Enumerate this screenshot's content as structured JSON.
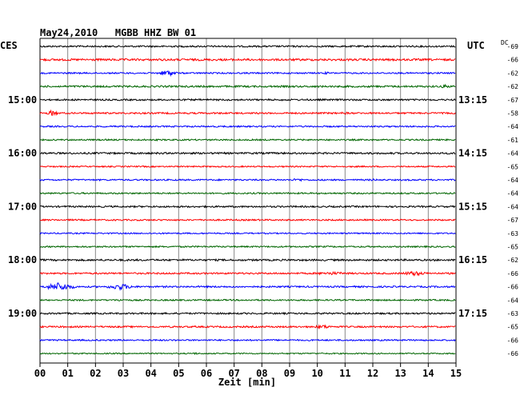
{
  "header": {
    "title": "May24,2010   MGBB HHZ BW 01",
    "left_zone": "CES",
    "right_zone": "UTC",
    "dc_label": "DC"
  },
  "colors": {
    "traces": [
      "#000000",
      "#ff0000",
      "#0000ff",
      "#006600"
    ],
    "grid": "#888888",
    "axis": "#000000"
  },
  "chart_data": {
    "type": "line",
    "title": "May24,2010   MGBB HHZ BW 01",
    "xlabel": "Zeit [min]",
    "ylabel": "",
    "xlim": [
      0,
      15
    ],
    "x_ticks": [
      "00",
      "01",
      "02",
      "03",
      "04",
      "05",
      "06",
      "07",
      "08",
      "09",
      "10",
      "11",
      "12",
      "13",
      "14",
      "15"
    ],
    "grid": true,
    "row_count": 24,
    "rows_per_hour": 4,
    "left_time_labels": [
      {
        "row": 4,
        "label": "15:00"
      },
      {
        "row": 8,
        "label": "16:00"
      },
      {
        "row": 12,
        "label": "17:00"
      },
      {
        "row": 16,
        "label": "18:00"
      },
      {
        "row": 20,
        "label": "19:00"
      }
    ],
    "right_time_labels": [
      {
        "row": 4,
        "label": "13:15"
      },
      {
        "row": 8,
        "label": "14:15"
      },
      {
        "row": 12,
        "label": "15:15"
      },
      {
        "row": 16,
        "label": "16:15"
      },
      {
        "row": 20,
        "label": "17:15"
      }
    ],
    "dc_values": [
      "-69",
      "-66",
      "-62",
      "-62",
      "-67",
      "-58",
      "-64",
      "-61",
      "-64",
      "-65",
      "-64",
      "-64",
      "-64",
      "-67",
      "-63",
      "-65",
      "-62",
      "-66",
      "-66",
      "-64",
      "-63",
      "-65",
      "-66",
      "-66"
    ],
    "noise_levels": [
      2.0,
      2.5,
      1.8,
      2.2,
      2.0,
      2.0,
      1.8,
      1.8,
      2.2,
      1.6,
      1.8,
      1.8,
      2.0,
      1.8,
      1.6,
      1.8,
      2.2,
      2.0,
      2.0,
      1.8,
      2.0,
      2.0,
      1.8,
      1.5
    ],
    "events": [
      {
        "row": 2,
        "minute": 4.6,
        "amplitude": 7,
        "duration_min": 0.9
      },
      {
        "row": 2,
        "minute": 10.3,
        "amplitude": 2,
        "duration_min": 0.6
      },
      {
        "row": 3,
        "minute": 14.6,
        "amplitude": 4,
        "duration_min": 0.4
      },
      {
        "row": 5,
        "minute": 0.45,
        "amplitude": 7,
        "duration_min": 0.5
      },
      {
        "row": 5,
        "minute": 11.0,
        "amplitude": 2,
        "duration_min": 1.0
      },
      {
        "row": 10,
        "minute": 9.3,
        "amplitude": 3,
        "duration_min": 0.7
      },
      {
        "row": 10,
        "minute": 12.0,
        "amplitude": 2,
        "duration_min": 0.6
      },
      {
        "row": 17,
        "minute": 10.5,
        "amplitude": 3,
        "duration_min": 2.0
      },
      {
        "row": 17,
        "minute": 13.5,
        "amplitude": 5,
        "duration_min": 1.2
      },
      {
        "row": 18,
        "minute": 0.7,
        "amplitude": 10,
        "duration_min": 1.4
      },
      {
        "row": 18,
        "minute": 2.9,
        "amplitude": 7,
        "duration_min": 1.3
      },
      {
        "row": 19,
        "minute": 2.9,
        "amplitude": 3,
        "duration_min": 0.4
      },
      {
        "row": 21,
        "minute": 10.2,
        "amplitude": 4,
        "duration_min": 0.9
      },
      {
        "row": 23,
        "minute": 5.6,
        "amplitude": 2,
        "duration_min": 0.5
      }
    ]
  }
}
